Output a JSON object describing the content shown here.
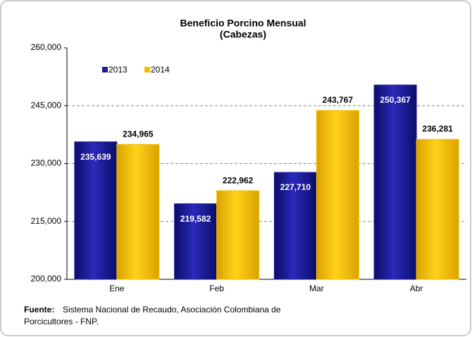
{
  "chart_data": {
    "type": "bar",
    "title": "Beneficio Porcino Mensual",
    "subtitle": "(Cabezas)",
    "categories": [
      "Ene",
      "Feb",
      "Mar",
      "Abr"
    ],
    "series": [
      {
        "name": "2013",
        "color": "#1c1c9e",
        "values": [
          235639,
          219582,
          227710,
          250367
        ],
        "value_labels": [
          "235,639",
          "219,582",
          "227,710",
          "250,367"
        ]
      },
      {
        "name": "2014",
        "color": "#f5c000",
        "values": [
          234965,
          222962,
          243767,
          236281
        ],
        "value_labels": [
          "234,965",
          "222,962",
          "243,767",
          "236,281"
        ]
      }
    ],
    "ylim": [
      200000,
      260000
    ],
    "yticks": [
      {
        "value": 200000,
        "label": "200,000"
      },
      {
        "value": 215000,
        "label": "215,000"
      },
      {
        "value": 230000,
        "label": "230,000"
      },
      {
        "value": 245000,
        "label": "245,000"
      },
      {
        "value": 260000,
        "label": "260,000"
      }
    ],
    "grid": true,
    "legend": "top-left",
    "source_label": "Fuente:",
    "source": [
      "Sistema Nacional de Recaudo, Asociación Colombiana de",
      "Porcicultores - FNP."
    ]
  }
}
